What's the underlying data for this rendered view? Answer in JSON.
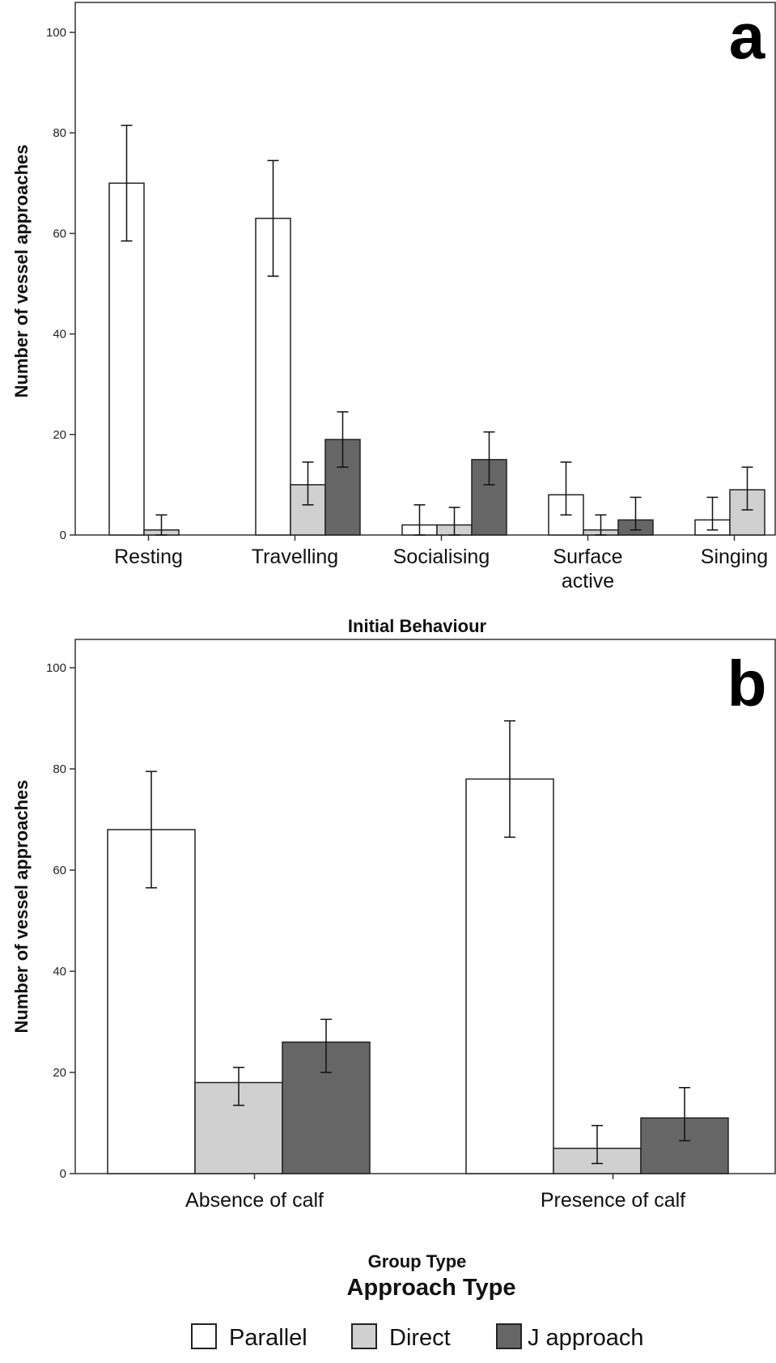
{
  "chart_data": [
    {
      "type": "bar",
      "panel_label": "a",
      "xlabel": "Initial Behaviour",
      "ylabel": "Number of vessel approaches",
      "ylim": [
        0,
        105
      ],
      "yticks": [
        0,
        20,
        40,
        60,
        80,
        100
      ],
      "grid": false,
      "categories": [
        "Resting",
        "Travelling",
        "Socialising",
        "Surface\nactive",
        "Singing"
      ],
      "series": [
        {
          "name": "Parallel",
          "values": [
            70,
            63,
            2,
            8,
            3
          ],
          "err_low": [
            58.5,
            51.5,
            0,
            4,
            1
          ],
          "err_high": [
            81.5,
            74.5,
            6,
            14.5,
            7.5
          ]
        },
        {
          "name": "Direct",
          "values": [
            1,
            10,
            2,
            1,
            9
          ],
          "err_low": [
            0,
            6,
            0,
            0,
            5
          ],
          "err_high": [
            4,
            14.5,
            5.5,
            4,
            13.5
          ]
        },
        {
          "name": "J approach",
          "values": [
            0,
            19,
            15,
            3,
            0
          ],
          "err_low": [
            null,
            13.5,
            10,
            1,
            null
          ],
          "err_high": [
            null,
            24.5,
            20.5,
            7.5,
            null
          ]
        }
      ]
    },
    {
      "type": "bar",
      "panel_label": "b",
      "xlabel": "Group Type",
      "ylabel": "Number of vessel approaches",
      "ylim": [
        0,
        105
      ],
      "yticks": [
        0,
        20,
        40,
        60,
        80,
        100
      ],
      "grid": false,
      "categories": [
        "Absence of calf",
        "Presence of calf"
      ],
      "series": [
        {
          "name": "Parallel",
          "values": [
            68,
            78
          ],
          "err_low": [
            56.5,
            66.5
          ],
          "err_high": [
            79.5,
            89.5
          ]
        },
        {
          "name": "Direct",
          "values": [
            18,
            5
          ],
          "err_low": [
            13.5,
            2
          ],
          "err_high": [
            21,
            9.5
          ]
        },
        {
          "name": "J approach",
          "values": [
            26,
            11
          ],
          "err_low": [
            20,
            6.5
          ],
          "err_high": [
            30.5,
            17
          ]
        }
      ]
    }
  ],
  "legend": {
    "title": "Approach Type",
    "items": [
      "Parallel",
      "Direct",
      "J approach"
    ],
    "position": "bottom-center"
  },
  "colors": {
    "parallel": "#ffffff",
    "direct": "#d0d0d0",
    "j_approach": "#666666",
    "stroke": "#222222"
  }
}
